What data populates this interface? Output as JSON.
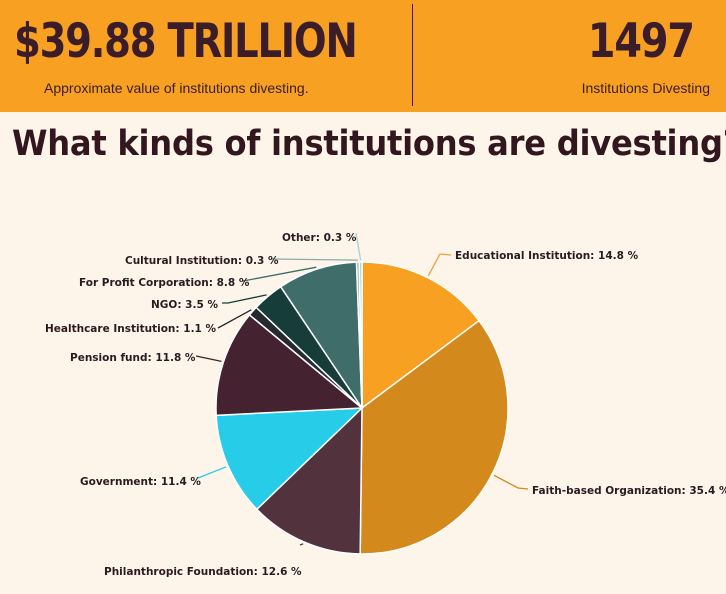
{
  "header": {
    "total_value": "$39.88 TRILLION",
    "total_caption": "Approximate value of institutions divesting.",
    "count_value": "1497",
    "count_caption": "Institutions Divesting"
  },
  "headline": "What kinds of institutions are divesting?",
  "colors": {
    "banner": "#f7a021",
    "background": "#fdf4ea",
    "text_dark": "#3b1d2a"
  },
  "chart_data": {
    "type": "pie",
    "start": "12 o'clock",
    "direction": "clockwise",
    "slices": [
      {
        "label": "Educational Institution",
        "value": 14.8,
        "label_text": "Educational Institution: 14.8 %",
        "color": "#f7a021"
      },
      {
        "label": "Faith-based Organization",
        "value": 35.4,
        "label_text": "Faith-based Organization: 35.4 %",
        "color": "#d4891d"
      },
      {
        "label": "Philanthropic Foundation",
        "value": 12.6,
        "label_text": "Philanthropic Foundation: 12.6 %",
        "color": "#52323d"
      },
      {
        "label": "Government",
        "value": 11.4,
        "label_text": "Government: 11.4 %",
        "color": "#27cde8"
      },
      {
        "label": "Pension fund",
        "value": 11.8,
        "label_text": "Pension fund: 11.8 %",
        "color": "#45222f"
      },
      {
        "label": "Healthcare Institution",
        "value": 1.1,
        "label_text": "Healthcare Institution: 1.1 %",
        "color": "#242a2e"
      },
      {
        "label": "NGO",
        "value": 3.5,
        "label_text": "NGO: 3.5 %",
        "color": "#163d3a"
      },
      {
        "label": "For Profit Corporation",
        "value": 8.8,
        "label_text": "For Profit Corporation: 8.8 %",
        "color": "#3f6e6a"
      },
      {
        "label": "Cultural Institution",
        "value": 0.3,
        "label_text": "Cultural Institution: 0.3 %",
        "color": "#87aeaa"
      },
      {
        "label": "Other",
        "value": 0.3,
        "label_text": "Other: 0.3 %",
        "color": "#9fd4db"
      }
    ]
  }
}
